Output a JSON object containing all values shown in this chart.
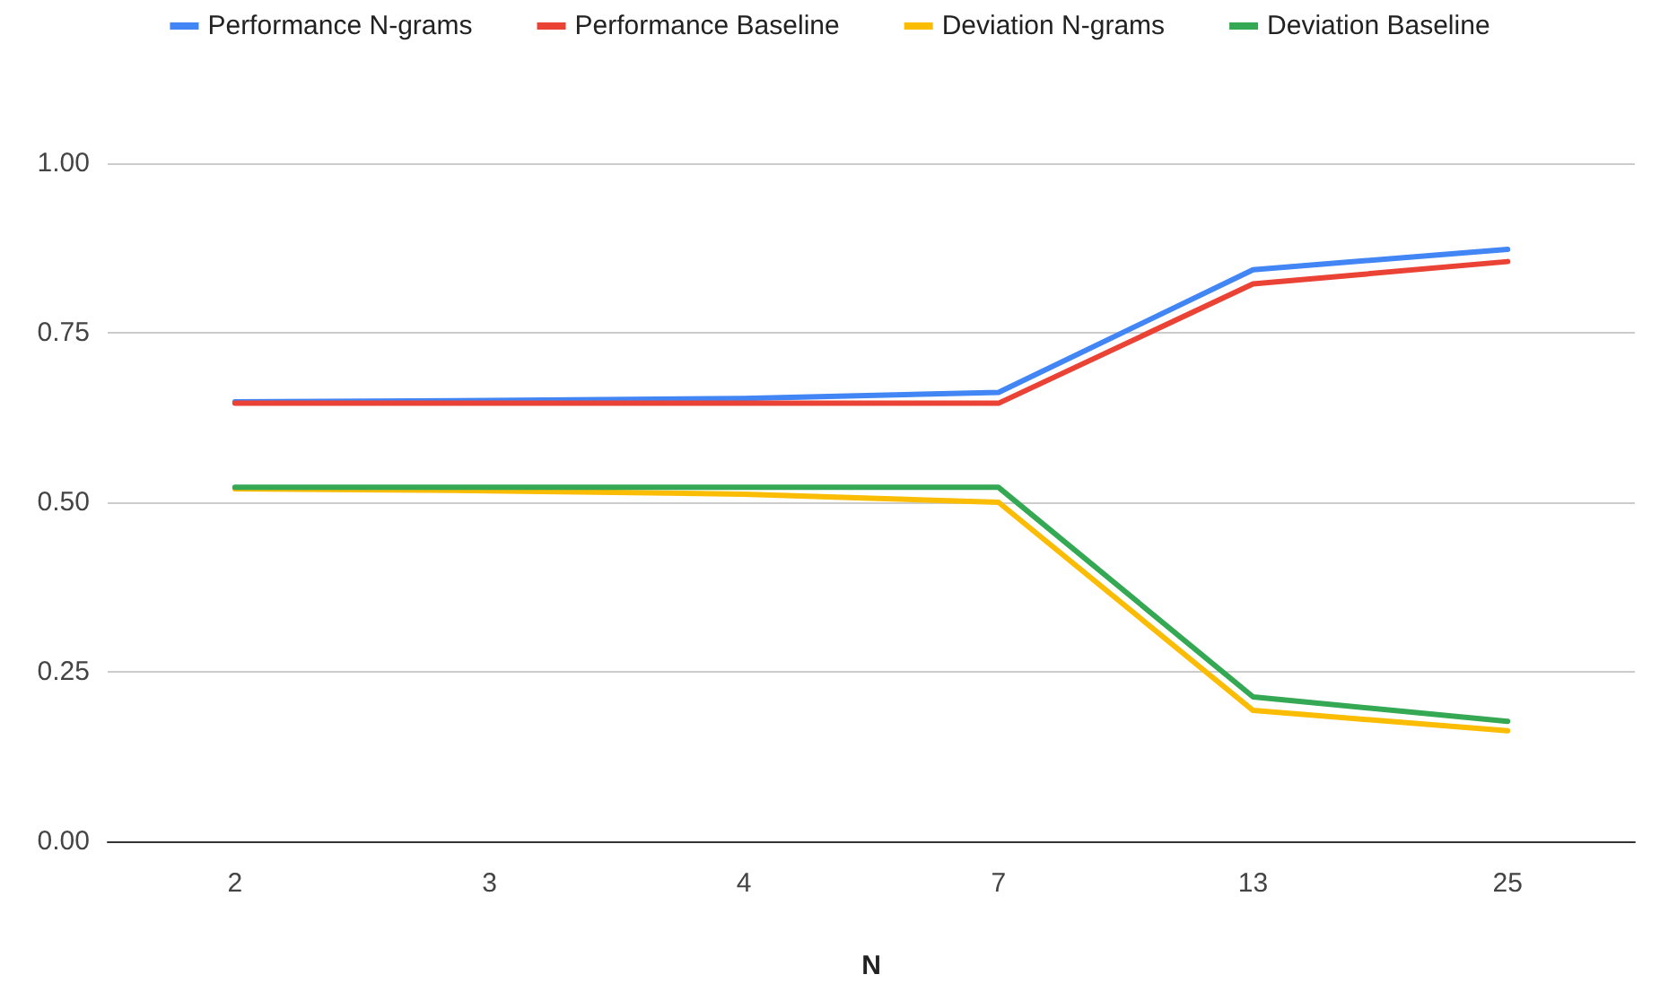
{
  "chart_data": {
    "type": "line",
    "xlabel": "N",
    "categories": [
      "2",
      "3",
      "4",
      "7",
      "13",
      "25"
    ],
    "series": [
      {
        "name": "Performance N-grams",
        "color": "#4285f4",
        "values": [
          0.648,
          0.65,
          0.653,
          0.662,
          0.843,
          0.873
        ]
      },
      {
        "name": "Performance Baseline",
        "color": "#ea4335",
        "values": [
          0.646,
          0.646,
          0.646,
          0.646,
          0.822,
          0.855
        ]
      },
      {
        "name": "Deviation N-grams",
        "color": "#fbbc04",
        "values": [
          0.52,
          0.517,
          0.512,
          0.5,
          0.193,
          0.163
        ]
      },
      {
        "name": "Deviation Baseline",
        "color": "#34a853",
        "values": [
          0.522,
          0.522,
          0.522,
          0.522,
          0.213,
          0.177
        ]
      }
    ],
    "ylim": [
      0,
      1
    ],
    "yticks": [
      {
        "value": 0,
        "label": "0.00"
      },
      {
        "value": 0.25,
        "label": "0.25"
      },
      {
        "value": 0.5,
        "label": "0.50"
      },
      {
        "value": 0.75,
        "label": "0.75"
      },
      {
        "value": 1,
        "label": "1.00"
      }
    ],
    "grid": "y",
    "legend": "top",
    "marker": "none",
    "line_style": "solid"
  }
}
